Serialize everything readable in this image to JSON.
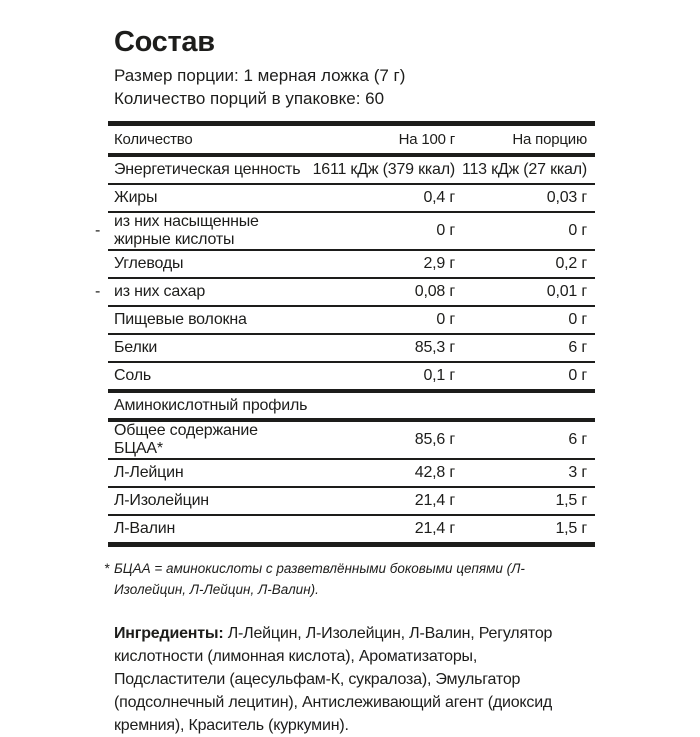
{
  "title": "Состав",
  "serving": {
    "size_line": "Размер порции: 1 мерная ложка (7 г)",
    "count_line": "Количество порций в упаковке: 60"
  },
  "table": {
    "headers": [
      "Количество",
      "На 100 г",
      "На порцию"
    ],
    "sub_marker": "-",
    "rows": [
      {
        "name": "Энергетическая ценность",
        "per100": "1611 кДж (379 ккал)",
        "per_serving": "113 кДж (27 ккал)",
        "sub": false
      },
      {
        "name": "Жиры",
        "per100": "0,4 г",
        "per_serving": "0,03 г",
        "sub": false
      },
      {
        "name": "из них насыщенные жирные кислоты",
        "per100": "0 г",
        "per_serving": "0 г",
        "sub": true
      },
      {
        "name": "Углеводы",
        "per100": "2,9 г",
        "per_serving": "0,2 г",
        "sub": false
      },
      {
        "name": "из них сахар",
        "per100": "0,08 г",
        "per_serving": "0,01 г",
        "sub": true
      },
      {
        "name": "Пищевые волокна",
        "per100": "0 г",
        "per_serving": "0 г",
        "sub": false
      },
      {
        "name": "Белки",
        "per100": "85,3 г",
        "per_serving": "6 г",
        "sub": false
      },
      {
        "name": "Соль",
        "per100": "0,1 г",
        "per_serving": "0 г",
        "sub": false
      }
    ],
    "section_header": "Аминокислотный профиль",
    "amino_rows": [
      {
        "name": "Общее содержание БЦАА*",
        "per100": "85,6 г",
        "per_serving": "6 г",
        "sub": false
      },
      {
        "name": "Л-Лейцин",
        "per100": "42,8 г",
        "per_serving": "3 г",
        "sub": false
      },
      {
        "name": "Л-Изолейцин",
        "per100": "21,4 г",
        "per_serving": "1,5 г",
        "sub": false
      },
      {
        "name": "Л-Валин",
        "per100": "21,4 г",
        "per_serving": "1,5 г",
        "sub": false
      }
    ]
  },
  "footnote": {
    "marker": "*",
    "text": "БЦАА = аминокислоты с разветвлёнными боковыми цепями (Л-Изолейцин, Л-Лейцин, Л-Валин)."
  },
  "ingredients": {
    "label": "Ингредиенты:",
    "text": "Л-Лейцин, Л-Изолейцин, Л-Валин, Регулятор кислотности (лимонная кислота), Ароматизаторы, Подсластители (ацесульфам-К, сукралоза), Эмульгатор (подсолнечный лецитин), Антислеживающий агент (диоксид кремния), Краситель (куркумин)."
  },
  "colors": {
    "text": "#1d1d1b",
    "background": "#ffffff"
  }
}
